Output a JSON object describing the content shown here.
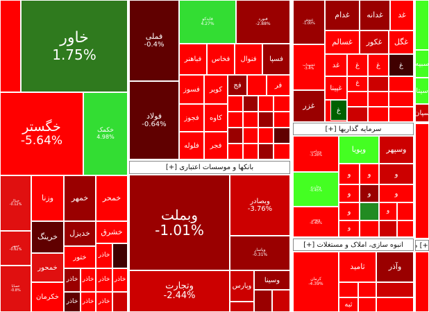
{
  "colors": {
    "dark_green": "#2f7a1e",
    "green": "#33cc33",
    "lime": "#44ff22",
    "red": "#ff0000",
    "red2": "#e01010",
    "crimson": "#cc0000",
    "dark_red": "#9a0000",
    "maroon": "#600000",
    "darkest": "#400000"
  },
  "headers": {
    "banks": "بانکها و موسسات اعتباری [+]",
    "investment": "سرمایه گذاریها [+]",
    "construction": "انبوه سازی، املاک و مستغلات [+]",
    "edge": "[+] م"
  },
  "tiles": {
    "khavar": {
      "name": "خاور",
      "pct": "1.75%"
    },
    "khegostar": {
      "name": "خگستر",
      "pct": "-5.64%"
    },
    "khekmak": {
      "name": "خکمک",
      "pct": "4.98%"
    },
    "khanal": {
      "name": "خبنال",
      "pct": "-0.12%"
    },
    "vazna": {
      "name": "وزنا"
    },
    "khemhr": {
      "name": "خمهر"
    },
    "khamhr": {
      "name": "خمحر"
    },
    "khrig": {
      "name": "خرینگ"
    },
    "khdizl": {
      "name": "خدیزل"
    },
    "khshrq": {
      "name": "خشرق"
    },
    "khomhr": {
      "name": "خمهر",
      "pct": "-0.62%"
    },
    "khazr": {
      "name": "خاذر"
    },
    "khtoor": {
      "name": "ختور"
    },
    "khemhor": {
      "name": "خمحور"
    },
    "khkarman": {
      "name": "خکرمان"
    },
    "khsapa": {
      "name": "خساپا",
      "pct": "-0.8%"
    },
    "fmli": {
      "name": "فملی",
      "pct": "-0.4%"
    },
    "foolad": {
      "name": "فولاد",
      "pct": "-0.64%"
    },
    "faidko": {
      "name": "فایدکو",
      "pct": "4.27%"
    },
    "foolsh": {
      "name": "فنورد",
      "pct": "-2.88%"
    },
    "fkharz": {
      "name": "فخاس"
    },
    "fnval": {
      "name": "فنوال"
    },
    "fspa": {
      "name": "فسپا"
    },
    "fbahonar": {
      "name": "فباهنر"
    },
    "fasoz": {
      "name": "فسوز"
    },
    "kavir": {
      "name": "کویر"
    },
    "fej": {
      "name": "فج"
    },
    "fr": {
      "name": "فر"
    },
    "fmhrz": {
      "name": "فجوز"
    },
    "kave": {
      "name": "کاوه"
    },
    "folooleh": {
      "name": "فلوله"
    },
    "fjr": {
      "name": "فجر"
    },
    "vebmelat": {
      "name": "وبملت",
      "pct": "-1.01%"
    },
    "vebsader": {
      "name": "وبصادر",
      "pct": "-3.76%"
    },
    "vpasar": {
      "name": "وپاسار",
      "pct": "-0.31%"
    },
    "vtejarat": {
      "name": "وتجارت",
      "pct": "-2.44%"
    },
    "vpars": {
      "name": "وپارس"
    },
    "vsina": {
      "name": "وسینا"
    },
    "ghdam": {
      "name": "غدام"
    },
    "ghdaneh": {
      "name": "غدانه"
    },
    "ghgol": {
      "name": "غگل"
    },
    "ghsalem": {
      "name": "غسالم"
    },
    "ghkor": {
      "name": "غکور"
    },
    "ghzar": {
      "name": "غزر"
    },
    "ghnvsh": {
      "name": "غنوش",
      "pct": "-1.00%"
    },
    "ghsb": {
      "name": "غشهداب",
      "pct": "-3.4%"
    },
    "ghpina": {
      "name": "غپینا"
    },
    "ghd": {
      "name": "غد"
    },
    "ghgh": {
      "name": "غ"
    },
    "vpouya": {
      "name": "وپویا"
    },
    "vsepehr": {
      "name": "وسپهر"
    },
    "vsakht": {
      "name": "وساخت",
      "pct": "-3.28%"
    },
    "vkharazm": {
      "name": "وخارزم",
      "pct": "-0.45%"
    },
    "vghadir": {
      "name": "وغدیر"
    },
    "vbahman": {
      "name": "وبهمن",
      "pct": "-0.40%"
    },
    "vo": {
      "name": "و"
    },
    "kerman": {
      "name": "کرمان",
      "pct": "-4.39%"
    },
    "vazar": {
      "name": "وآذر"
    },
    "samid": {
      "name": "ثامید"
    },
    "tba": {
      "name": "ثبه"
    },
    "sabiah": {
      "name": "سبیه"
    },
    "siat": {
      "name": "سیتا"
    },
    "sipan": {
      "name": "سپان"
    }
  }
}
